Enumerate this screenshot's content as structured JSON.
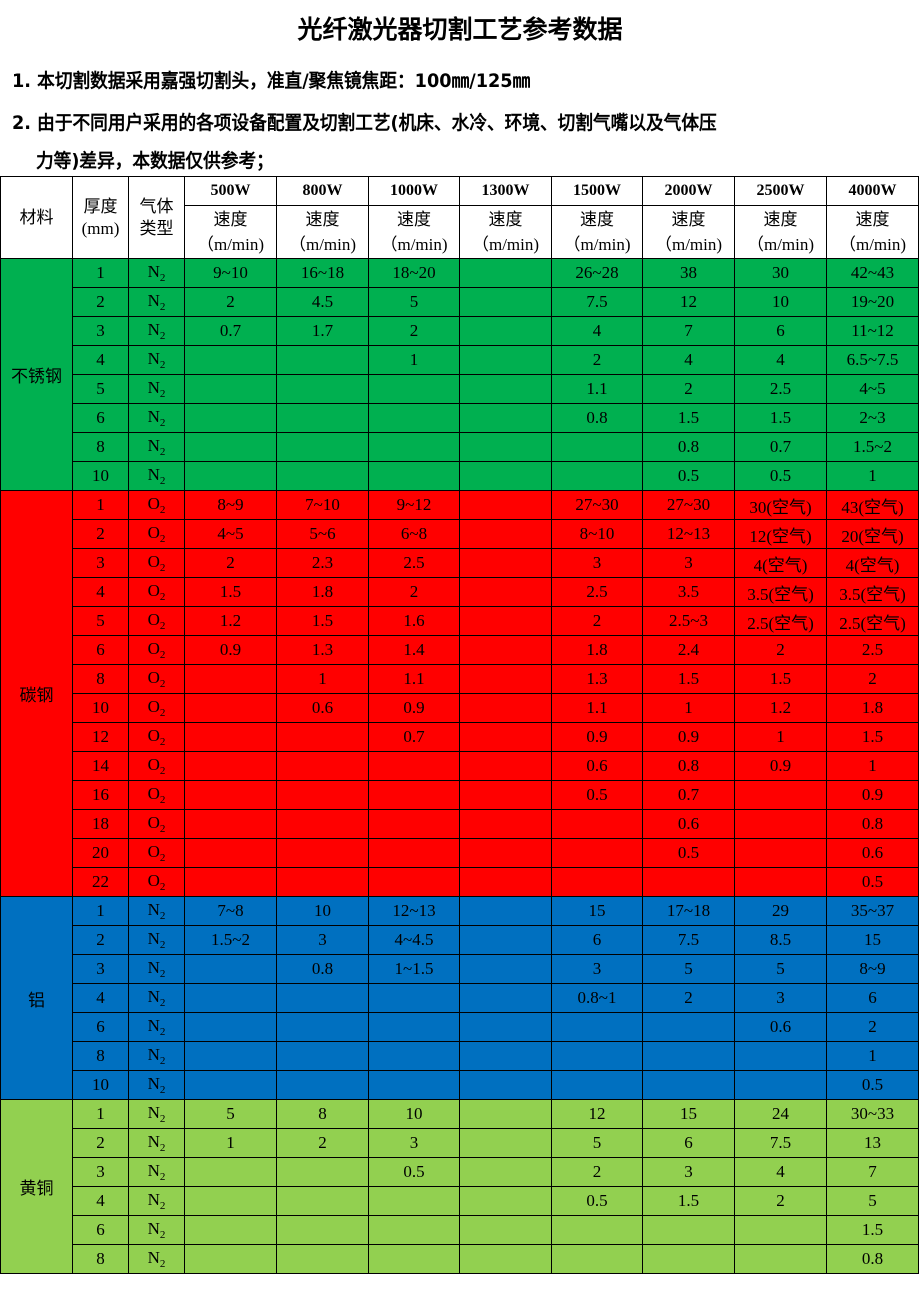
{
  "title": "光纤激光器切割工艺参考数据",
  "notes": [
    "1. 本切割数据采用嘉强切割头，准直/聚焦镜焦距：100㎜/125㎜",
    "2. 由于不同用户采用的各项设备配置及切割工艺(机床、水冷、环境、切割气嘴以及气体压",
    "力等)差异，本数据仅供参考；"
  ],
  "table": {
    "headers": {
      "material": "材料",
      "thickness": "厚度(mm)",
      "gas": "气体类型",
      "speed": "速度",
      "unit": "（m/min)"
    },
    "powers": [
      "500W",
      "800W",
      "1000W",
      "1300W",
      "1500W",
      "2000W",
      "2500W",
      "4000W"
    ],
    "groups": [
      {
        "material": "不锈钢",
        "color": "#00b050",
        "rows": [
          [
            "1",
            "N2",
            "9~10",
            "16~18",
            "18~20",
            "",
            "26~28",
            "38",
            "30",
            "42~43"
          ],
          [
            "2",
            "N2",
            "2",
            "4.5",
            "5",
            "",
            "7.5",
            "12",
            "10",
            "19~20"
          ],
          [
            "3",
            "N2",
            "0.7",
            "1.7",
            "2",
            "",
            "4",
            "7",
            "6",
            "11~12"
          ],
          [
            "4",
            "N2",
            "",
            "",
            "1",
            "",
            "2",
            "4",
            "4",
            "6.5~7.5"
          ],
          [
            "5",
            "N2",
            "",
            "",
            "",
            "",
            "1.1",
            "2",
            "2.5",
            "4~5"
          ],
          [
            "6",
            "N2",
            "",
            "",
            "",
            "",
            "0.8",
            "1.5",
            "1.5",
            "2~3"
          ],
          [
            "8",
            "N2",
            "",
            "",
            "",
            "",
            "",
            "0.8",
            "0.7",
            "1.5~2"
          ],
          [
            "10",
            "N2",
            "",
            "",
            "",
            "",
            "",
            "0.5",
            "0.5",
            "1"
          ]
        ]
      },
      {
        "material": "碳钢",
        "color": "#ff0000",
        "rows": [
          [
            "1",
            "O2",
            "8~9",
            "7~10",
            "9~12",
            "",
            "27~30",
            "27~30",
            "30(空气)",
            "43(空气)"
          ],
          [
            "2",
            "O2",
            "4~5",
            "5~6",
            "6~8",
            "",
            "8~10",
            "12~13",
            "12(空气)",
            "20(空气)"
          ],
          [
            "3",
            "O2",
            "2",
            "2.3",
            "2.5",
            "",
            "3",
            "3",
            "4(空气)",
            "4(空气)"
          ],
          [
            "4",
            "O2",
            "1.5",
            "1.8",
            "2",
            "",
            "2.5",
            "3.5",
            "3.5(空气)",
            "3.5(空气)"
          ],
          [
            "5",
            "O2",
            "1.2",
            "1.5",
            "1.6",
            "",
            "2",
            "2.5~3",
            "2.5(空气)",
            "2.5(空气)"
          ],
          [
            "6",
            "O2",
            "0.9",
            "1.3",
            "1.4",
            "",
            "1.8",
            "2.4",
            "2",
            "2.5"
          ],
          [
            "8",
            "O2",
            "",
            "1",
            "1.1",
            "",
            "1.3",
            "1.5",
            "1.5",
            "2"
          ],
          [
            "10",
            "O2",
            "",
            "0.6",
            "0.9",
            "",
            "1.1",
            "1",
            "1.2",
            "1.8"
          ],
          [
            "12",
            "O2",
            "",
            "",
            "0.7",
            "",
            "0.9",
            "0.9",
            "1",
            "1.5"
          ],
          [
            "14",
            "O2",
            "",
            "",
            "",
            "",
            "0.6",
            "0.8",
            "0.9",
            "1"
          ],
          [
            "16",
            "O2",
            "",
            "",
            "",
            "",
            "0.5",
            "0.7",
            "",
            "0.9"
          ],
          [
            "18",
            "O2",
            "",
            "",
            "",
            "",
            "",
            "0.6",
            "",
            "0.8"
          ],
          [
            "20",
            "O2",
            "",
            "",
            "",
            "",
            "",
            "0.5",
            "",
            "0.6"
          ],
          [
            "22",
            "O2",
            "",
            "",
            "",
            "",
            "",
            "",
            "",
            "0.5"
          ]
        ]
      },
      {
        "material": "铝",
        "color": "#0070c0",
        "rows": [
          [
            "1",
            "N2",
            "7~8",
            "10",
            "12~13",
            "",
            "15",
            "17~18",
            "29",
            "35~37"
          ],
          [
            "2",
            "N2",
            "1.5~2",
            "3",
            "4~4.5",
            "",
            "6",
            "7.5",
            "8.5",
            "15"
          ],
          [
            "3",
            "N2",
            "",
            "0.8",
            "1~1.5",
            "",
            "3",
            "5",
            "5",
            "8~9"
          ],
          [
            "4",
            "N2",
            "",
            "",
            "",
            "",
            "0.8~1",
            "2",
            "3",
            "6"
          ],
          [
            "6",
            "N2",
            "",
            "",
            "",
            "",
            "",
            "",
            "0.6",
            "2"
          ],
          [
            "8",
            "N2",
            "",
            "",
            "",
            "",
            "",
            "",
            "",
            "1"
          ],
          [
            "10",
            "N2",
            "",
            "",
            "",
            "",
            "",
            "",
            "",
            "0.5"
          ]
        ]
      },
      {
        "material": "黄铜",
        "color": "#92d050",
        "rows": [
          [
            "1",
            "N2",
            "5",
            "8",
            "10",
            "",
            "12",
            "15",
            "24",
            "30~33"
          ],
          [
            "2",
            "N2",
            "1",
            "2",
            "3",
            "",
            "5",
            "6",
            "7.5",
            "13"
          ],
          [
            "3",
            "N2",
            "",
            "",
            "0.5",
            "",
            "2",
            "3",
            "4",
            "7"
          ],
          [
            "4",
            "N2",
            "",
            "",
            "",
            "",
            "0.5",
            "1.5",
            "2",
            "5"
          ],
          [
            "6",
            "N2",
            "",
            "",
            "",
            "",
            "",
            "",
            "",
            "1.5"
          ],
          [
            "8",
            "N2",
            "",
            "",
            "",
            "",
            "",
            "",
            "",
            "0.8"
          ]
        ]
      }
    ]
  }
}
